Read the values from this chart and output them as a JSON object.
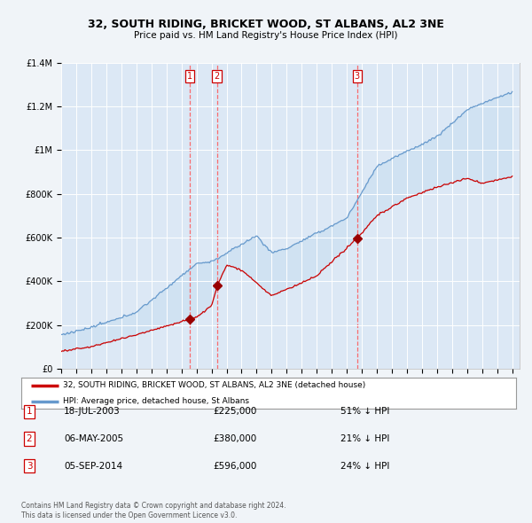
{
  "title": "32, SOUTH RIDING, BRICKET WOOD, ST ALBANS, AL2 3NE",
  "subtitle": "Price paid vs. HM Land Registry's House Price Index (HPI)",
  "background_color": "#f0f4f8",
  "plot_bg_color": "#dce8f5",
  "transactions": [
    {
      "num": 1,
      "date": "18-JUL-2003",
      "year": 2003.54,
      "price": 225000,
      "pct": "51% ↓ HPI"
    },
    {
      "num": 2,
      "date": "06-MAY-2005",
      "year": 2005.35,
      "price": 380000,
      "pct": "21% ↓ HPI"
    },
    {
      "num": 3,
      "date": "05-SEP-2014",
      "year": 2014.68,
      "price": 596000,
      "pct": "24% ↓ HPI"
    }
  ],
  "legend_line1": "32, SOUTH RIDING, BRICKET WOOD, ST ALBANS, AL2 3NE (detached house)",
  "legend_line2": "HPI: Average price, detached house, St Albans",
  "footer1": "Contains HM Land Registry data © Crown copyright and database right 2024.",
  "footer2": "This data is licensed under the Open Government Licence v3.0.",
  "ylim": [
    0,
    1400000
  ],
  "yticks": [
    0,
    200000,
    400000,
    600000,
    800000,
    1000000,
    1200000,
    1400000
  ],
  "ytick_labels": [
    "£0",
    "£200K",
    "£400K",
    "£600K",
    "£800K",
    "£1M",
    "£1.2M",
    "£1.4M"
  ],
  "red_line_color": "#cc0000",
  "blue_line_color": "#6699cc",
  "fill_color": "#c8dff0",
  "marker_color": "#990000",
  "vline_color": "#ff5555"
}
